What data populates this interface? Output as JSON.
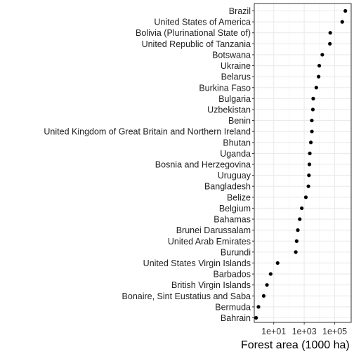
{
  "chart_data": {
    "type": "scatter",
    "title": "",
    "xlabel": "Forest area (1000 ha)",
    "ylabel": "",
    "x_scale": "log10",
    "xlim": [
      0.53,
      1200000
    ],
    "x_ticks": [
      10,
      1000,
      100000
    ],
    "x_tick_labels": [
      "1e+01",
      "1e+03",
      "1e+05"
    ],
    "grid": true,
    "legend": "none",
    "point_color": "#000000",
    "categories": [
      "Brazil",
      "United States of America",
      "Bolivia (Plurinational State of)",
      "United Republic of Tanzania",
      "Botswana",
      "Ukraine",
      "Belarus",
      "Burkina Faso",
      "Bulgaria",
      "Uzbekistan",
      "Benin",
      "United Kingdom of Great Britain and Northern Ireland",
      "Bhutan",
      "Uganda",
      "Bosnia and Herzegovina",
      "Uruguay",
      "Bangladesh",
      "Belize",
      "Belgium",
      "Bahamas",
      "Brunei Darussalam",
      "United Arab Emirates",
      "Burundi",
      "United States Virgin Islands",
      "Barbados",
      "British Virgin Islands",
      "Bonaire, Sint Eustatius and Saba",
      "Bermuda",
      "Bahrain"
    ],
    "values": [
      497000,
      310000,
      50800,
      48100,
      15300,
      9690,
      8770,
      6200,
      3890,
      3690,
      3140,
      3190,
      2720,
      2320,
      2190,
      2030,
      1880,
      1280,
      689,
      509,
      380,
      318,
      280,
      18,
      6.3,
      3.6,
      2.2,
      1.0,
      0.7
    ]
  }
}
